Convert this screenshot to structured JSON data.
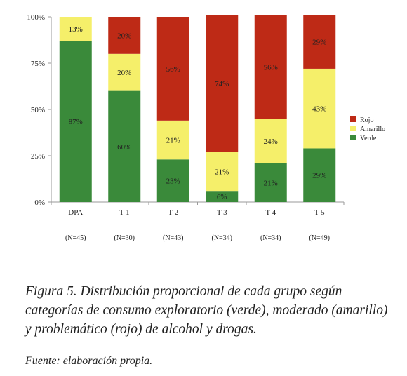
{
  "chart_data": {
    "type": "bar",
    "stacked": true,
    "percent": true,
    "categories": [
      "DPA",
      "T-1",
      "T-2",
      "T-3",
      "T-4",
      "T-5"
    ],
    "sample_sizes": [
      "(N=45)",
      "(N=30)",
      "(N=43)",
      "(N=34)",
      "(N=34)",
      "(N=49)"
    ],
    "series": [
      {
        "name": "Verde",
        "color": "#3a8a3a",
        "values": [
          87,
          60,
          23,
          6,
          21,
          29
        ],
        "labels": [
          "87%",
          "60%",
          "23%",
          "6%",
          "21%",
          "29%"
        ]
      },
      {
        "name": "Amarillo",
        "color": "#f5ef6a",
        "values": [
          13,
          20,
          21,
          21,
          24,
          43
        ],
        "labels": [
          "13%",
          "20%",
          "21%",
          "21%",
          "24%",
          "43%"
        ]
      },
      {
        "name": "Rojo",
        "color": "#be2a16",
        "values": [
          0,
          20,
          56,
          74,
          56,
          29
        ],
        "labels": [
          "",
          "20%",
          "56%",
          "74%",
          "56%",
          "29%"
        ]
      }
    ],
    "legend_order": [
      "Rojo",
      "Amarillo",
      "Verde"
    ],
    "legend_position": "right",
    "y_ticks": [
      0,
      25,
      50,
      75,
      100
    ],
    "y_tick_labels": [
      "0%",
      "25%",
      "50%",
      "75%",
      "100%"
    ],
    "ylim": [
      0,
      100
    ],
    "grid": false
  },
  "caption": {
    "text": "Figura 5. Distribución proporcional de cada grupo según categorías de consumo exploratorio (verde), moderado (amarillo) y problemático (rojo) de alcohol y drogas.",
    "source": "Fuente: elaboración propia."
  }
}
